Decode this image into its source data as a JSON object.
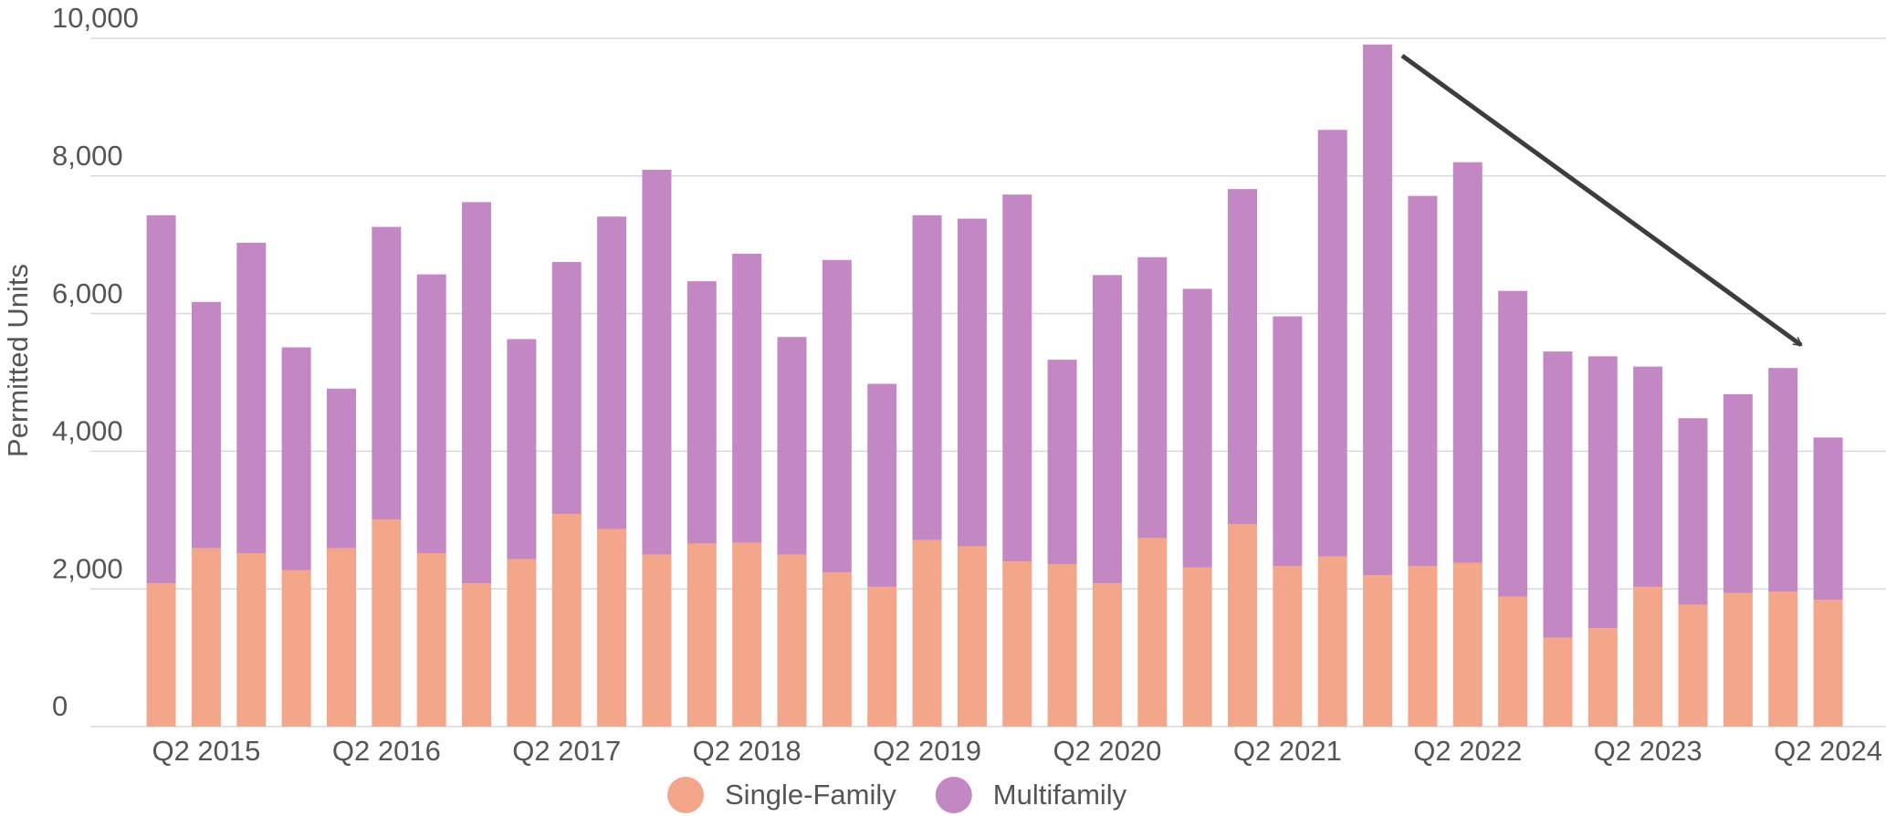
{
  "chart_data": {
    "type": "stacked_bar",
    "y_label": "Permitted Units",
    "categories": [
      null,
      "Q2 2015",
      null,
      null,
      null,
      "Q2 2016",
      null,
      null,
      null,
      "Q2 2017",
      null,
      null,
      null,
      "Q2 2018",
      null,
      null,
      null,
      "Q2 2019",
      null,
      null,
      null,
      "Q2 2020",
      null,
      null,
      null,
      "Q2 2021",
      null,
      null,
      null,
      "Q2 2022",
      null,
      null,
      null,
      "Q2 2023",
      null,
      null,
      null,
      "Q2 2024"
    ],
    "series": [
      {
        "name": "Single-Family",
        "color": "#f4a68b",
        "values": [
          2080,
          2590,
          2520,
          2270,
          2590,
          3010,
          2520,
          2080,
          2430,
          3090,
          2870,
          2500,
          2660,
          2670,
          2500,
          2240,
          2030,
          2710,
          2620,
          2400,
          2360,
          2080,
          2740,
          2310,
          2940,
          2330,
          2470,
          2200,
          2330,
          2380,
          1890,
          1290,
          1430,
          2030,
          1770,
          1940,
          1960,
          1840
        ]
      },
      {
        "name": "Multifamily",
        "color": "#c388c4",
        "values": [
          5350,
          3580,
          4510,
          3240,
          2320,
          4250,
          4050,
          5540,
          3200,
          3660,
          4540,
          5590,
          3810,
          4200,
          3160,
          4540,
          2950,
          4720,
          4760,
          5330,
          2970,
          4480,
          4080,
          4050,
          4870,
          3630,
          6200,
          7710,
          5380,
          5820,
          4440,
          4160,
          3950,
          3200,
          2710,
          2890,
          3250,
          2360
        ]
      }
    ],
    "ylim": [
      0,
      10000
    ],
    "yticks": [
      0,
      {
        "value": 2000,
        "label": "2,000"
      },
      {
        "value": 4000,
        "label": "4,000"
      },
      {
        "value": 6000,
        "label": "6,000"
      },
      {
        "value": 8000,
        "label": "8,000"
      },
      {
        "value": 10000,
        "label": "10,000"
      }
    ],
    "grid": true,
    "legend": "bottom"
  }
}
